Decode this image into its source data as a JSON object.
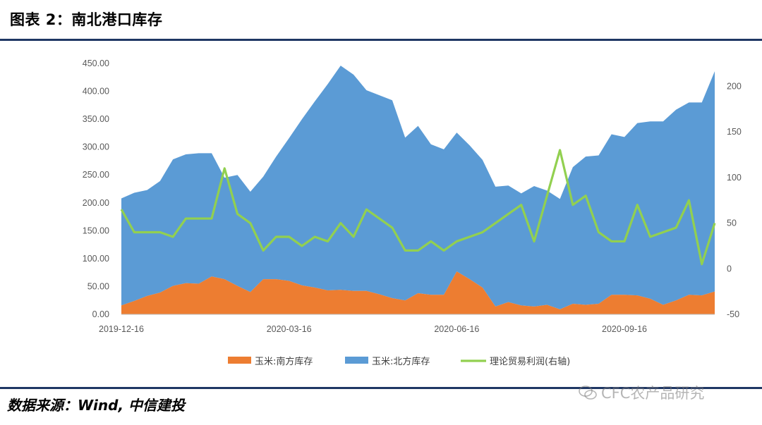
{
  "header": {
    "title": "图表 2：南北港口库存"
  },
  "footer": {
    "source": "数据来源：Wind, 中信建投",
    "watermark": "CFC农产品研究"
  },
  "chart_data": {
    "type": "area",
    "x_tick_labels": [
      "2019-12-16",
      "2020-03-16",
      "2020-06-16",
      "2020-09-16"
    ],
    "y_left": {
      "ylim": [
        0,
        450
      ],
      "ticks": [
        "0.00",
        "50.00",
        "100.00",
        "150.00",
        "200.00",
        "250.00",
        "300.00",
        "350.00",
        "400.00",
        "450.00"
      ]
    },
    "y_right": {
      "ylim": [
        -50,
        225
      ],
      "ticks": [
        "-50",
        "0",
        "50",
        "100",
        "150",
        "200"
      ]
    },
    "series": [
      {
        "name": "玉米:南方库存",
        "kind": "area",
        "axis": "left",
        "stack": true,
        "color": "#ed7d31",
        "values": [
          16,
          24,
          33,
          39,
          51,
          56,
          55,
          68,
          63,
          51,
          40,
          63,
          63,
          60,
          52,
          48,
          43,
          44,
          42,
          42,
          36,
          29,
          25,
          38,
          35,
          35,
          77,
          63,
          48,
          14,
          22,
          16,
          14,
          17,
          9,
          19,
          17,
          19,
          35,
          35,
          34,
          28,
          17,
          25,
          35,
          34,
          41
        ]
      },
      {
        "name": "玉米:北方库存",
        "kind": "area",
        "axis": "left",
        "stack": true,
        "color": "#5b9bd5",
        "values": [
          192,
          194,
          190,
          200,
          227,
          231,
          234,
          221,
          182,
          199,
          180,
          184,
          220,
          256,
          298,
          334,
          370,
          402,
          388,
          360,
          357,
          355,
          292,
          300,
          270,
          261,
          249,
          240,
          229,
          215,
          209,
          201,
          216,
          205,
          198,
          245,
          266,
          266,
          288,
          283,
          309,
          318,
          329,
          342,
          345,
          346,
          395
        ]
      },
      {
        "name": "理论贸易利润(右轴)",
        "kind": "line",
        "axis": "right",
        "color": "#92d050",
        "values": [
          65,
          40,
          40,
          40,
          35,
          55,
          55,
          55,
          110,
          60,
          50,
          20,
          35,
          35,
          25,
          35,
          30,
          50,
          35,
          65,
          55,
          45,
          20,
          20,
          30,
          20,
          30,
          35,
          40,
          50,
          60,
          70,
          30,
          80,
          130,
          70,
          80,
          40,
          30,
          30,
          70,
          35,
          40,
          45,
          75,
          5,
          50
        ]
      }
    ],
    "grid": false,
    "legend_position": "bottom"
  }
}
